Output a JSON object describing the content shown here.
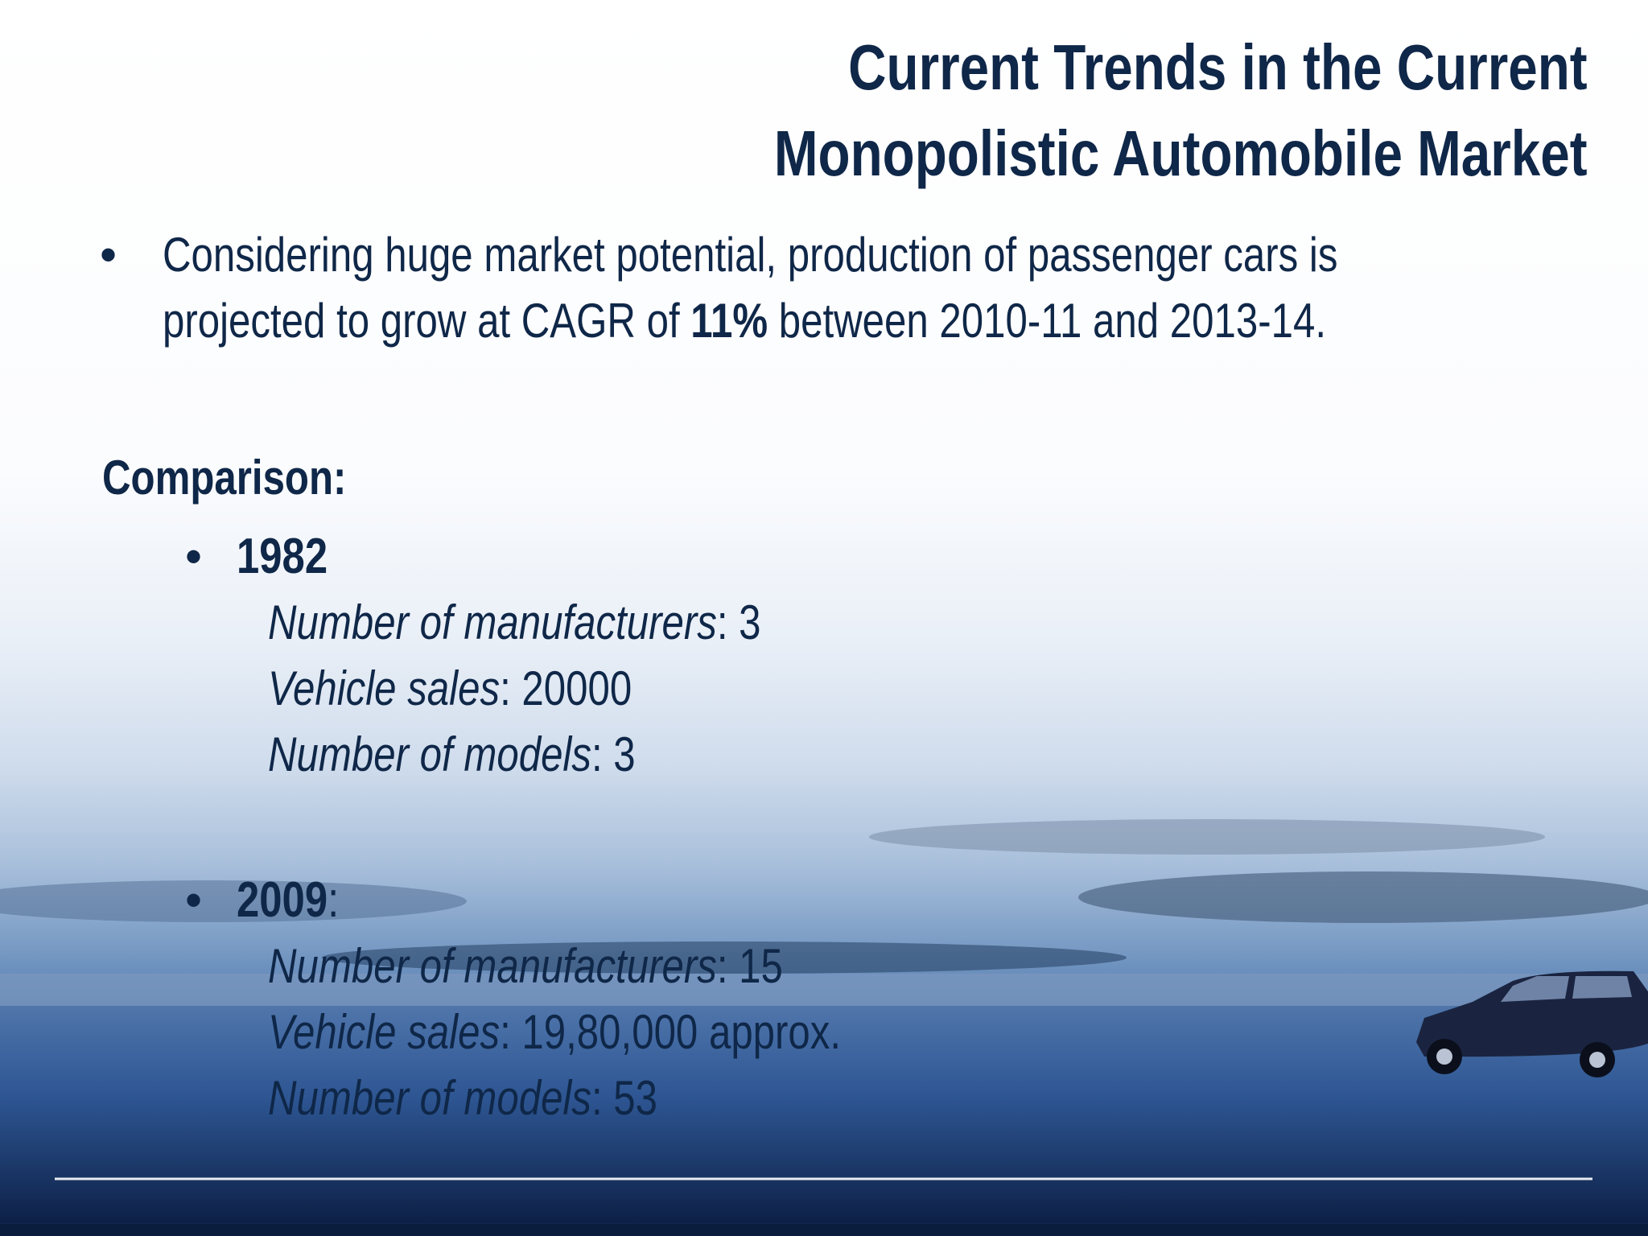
{
  "title": [
    "Current Trends in the Current",
    "Monopolistic Automobile Market"
  ],
  "intro": {
    "before": "Considering huge market potential, production of passenger cars is projected to grow at CAGR of ",
    "highlight": "11%",
    "after": " between 2010-11 and 2013-14."
  },
  "comparison": {
    "heading": "Comparison:",
    "years": [
      {
        "year": "1982",
        "items": [
          {
            "label": "Number of manufacturers",
            "value": ": 3"
          },
          {
            "label": "Vehicle sales",
            "value": ": 20000"
          },
          {
            "label": "Number of models",
            "value": ": 3"
          }
        ]
      },
      {
        "year": "2009",
        "suffix": ":",
        "items": [
          {
            "label": "Number of manufacturers",
            "value": ": 15"
          },
          {
            "label": "Vehicle sales",
            "value": ": 19,80,000 approx."
          },
          {
            "label": "Number of models",
            "value": ": 53"
          }
        ]
      }
    ]
  }
}
